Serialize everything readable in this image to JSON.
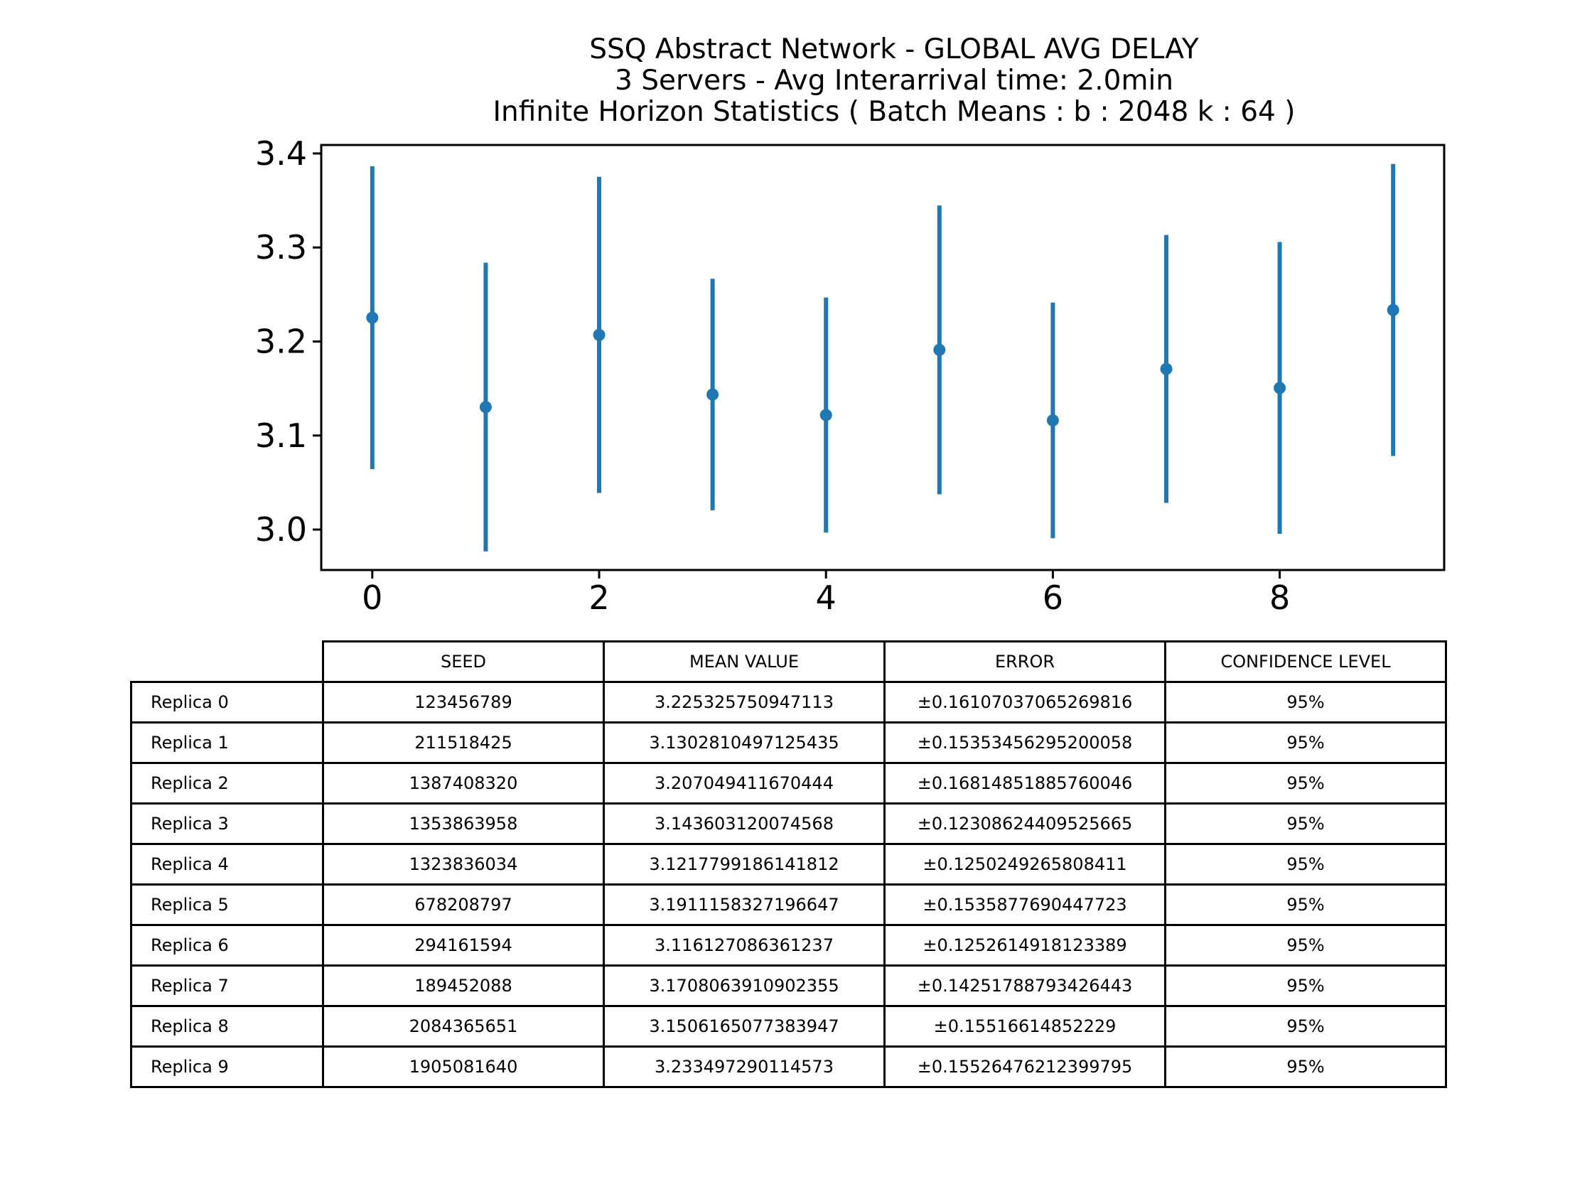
{
  "chart_data": {
    "type": "errorbar",
    "title": [
      "SSQ Abstract Network - GLOBAL AVG DELAY",
      "3 Servers -  Avg Interarrival time: 2.0min",
      "Infinite Horizon Statistics ( Batch Means : b : 2048  k : 64 )"
    ],
    "x": [
      0,
      1,
      2,
      3,
      4,
      5,
      6,
      7,
      8,
      9
    ],
    "means": [
      3.225325750947113,
      3.1302810497125435,
      3.207049411670444,
      3.143603120074568,
      3.1217799186141812,
      3.1911158327196647,
      3.116127086361237,
      3.1708063910902355,
      3.1506165077383947,
      3.233497290114573
    ],
    "errors": [
      0.16107037065269816,
      0.15353456295200058,
      0.16814851885760046,
      0.12308624409525665,
      0.1250249265808411,
      0.1535877690447723,
      0.1252614918123389,
      0.14251788793426443,
      0.15516614852229,
      0.15526476212399795
    ],
    "xticks": [
      "0",
      "2",
      "4",
      "6",
      "8"
    ],
    "yticks": [
      "3.0",
      "3.1",
      "3.2",
      "3.3",
      "3.4"
    ],
    "xlim": [
      -0.45,
      9.45
    ],
    "ylim": [
      2.957,
      3.409
    ],
    "color": "#1f77b4"
  },
  "table": {
    "headers": [
      "SEED",
      "MEAN VALUE",
      "ERROR",
      "CONFIDENCE LEVEL"
    ],
    "rows": [
      {
        "label": "Replica 0",
        "cells": [
          "123456789",
          "3.225325750947113",
          "±0.16107037065269816",
          "95%"
        ]
      },
      {
        "label": "Replica 1",
        "cells": [
          "211518425",
          "3.1302810497125435",
          "±0.15353456295200058",
          "95%"
        ]
      },
      {
        "label": "Replica 2",
        "cells": [
          "1387408320",
          "3.207049411670444",
          "±0.16814851885760046",
          "95%"
        ]
      },
      {
        "label": "Replica 3",
        "cells": [
          "1353863958",
          "3.143603120074568",
          "±0.12308624409525665",
          "95%"
        ]
      },
      {
        "label": "Replica 4",
        "cells": [
          "1323836034",
          "3.1217799186141812",
          "±0.1250249265808411",
          "95%"
        ]
      },
      {
        "label": "Replica 5",
        "cells": [
          "678208797",
          "3.1911158327196647",
          "±0.1535877690447723",
          "95%"
        ]
      },
      {
        "label": "Replica 6",
        "cells": [
          "294161594",
          "3.116127086361237",
          "±0.1252614918123389",
          "95%"
        ]
      },
      {
        "label": "Replica 7",
        "cells": [
          "189452088",
          "3.1708063910902355",
          "±0.14251788793426443",
          "95%"
        ]
      },
      {
        "label": "Replica 8",
        "cells": [
          "2084365651",
          "3.1506165077383947",
          "±0.15516614852229",
          "95%"
        ]
      },
      {
        "label": "Replica 9",
        "cells": [
          "1905081640",
          "3.233497290114573",
          "±0.15526476212399795",
          "95%"
        ]
      }
    ]
  }
}
